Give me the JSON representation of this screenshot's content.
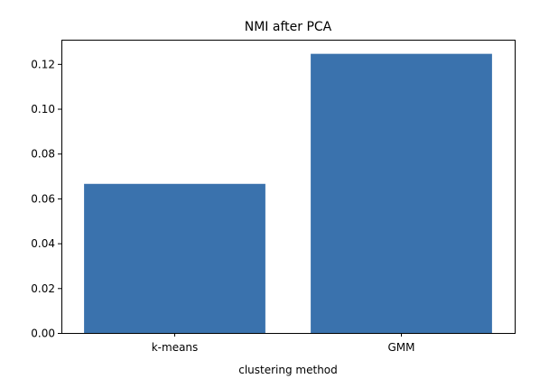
{
  "chart_data": {
    "type": "bar",
    "title": "NMI after PCA",
    "xlabel": "clustering method",
    "ylabel": "",
    "categories": [
      "k-means",
      "GMM"
    ],
    "values": [
      0.0665,
      0.1245
    ],
    "ylim": [
      0,
      0.1308
    ],
    "yticks": [
      "0.00",
      "0.02",
      "0.04",
      "0.06",
      "0.08",
      "0.10",
      "0.12"
    ],
    "grid": false,
    "bar_color": "#3a72ad"
  }
}
